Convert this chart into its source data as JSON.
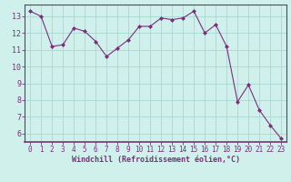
{
  "x": [
    0,
    1,
    2,
    3,
    4,
    5,
    6,
    7,
    8,
    9,
    10,
    11,
    12,
    13,
    14,
    15,
    16,
    17,
    18,
    19,
    20,
    21,
    22,
    23
  ],
  "y": [
    13.3,
    13.0,
    11.2,
    11.3,
    12.3,
    12.1,
    11.5,
    10.6,
    11.1,
    11.6,
    12.4,
    12.4,
    12.9,
    12.8,
    12.9,
    13.3,
    12.0,
    12.5,
    11.2,
    7.9,
    8.9,
    7.4,
    6.5,
    5.7
  ],
  "line_color": "#7b2f7b",
  "marker": "D",
  "marker_size": 2.0,
  "bg_color": "#d0f0ec",
  "grid_color": "#a8d8d0",
  "xlabel": "Windchill (Refroidissement éolien,°C)",
  "xlabel_color": "#7b2f7b",
  "tick_color": "#7b2f7b",
  "ylim": [
    5.5,
    13.7
  ],
  "xlim": [
    -0.5,
    23.5
  ],
  "yticks": [
    6,
    7,
    8,
    9,
    10,
    11,
    12,
    13
  ],
  "xticks": [
    0,
    1,
    2,
    3,
    4,
    5,
    6,
    7,
    8,
    9,
    10,
    11,
    12,
    13,
    14,
    15,
    16,
    17,
    18,
    19,
    20,
    21,
    22,
    23
  ],
  "spine_color": "#7b2f7b",
  "tick_fontsize": 5.5,
  "xlabel_fontsize": 6.0,
  "ytick_fontsize": 6.0
}
